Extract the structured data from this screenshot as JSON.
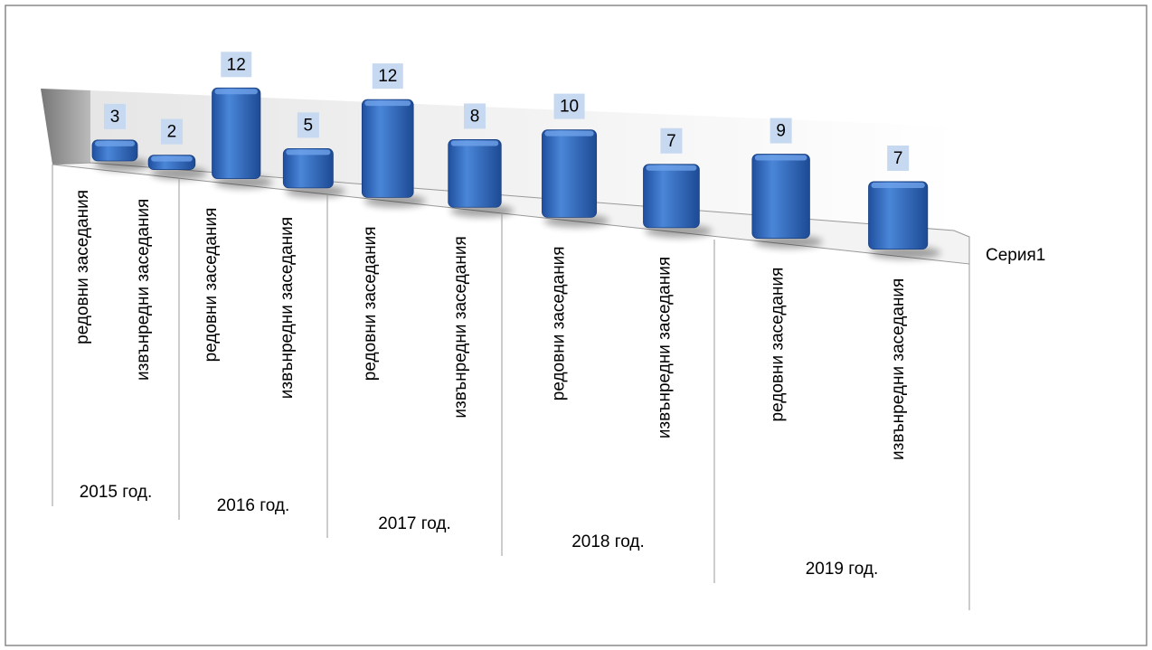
{
  "chart_data": {
    "type": "bar",
    "categories": [
      "редовни заседания",
      "извънредни заседания",
      "редовни заседания",
      "извънредни заседания",
      "редовни заседания",
      "извънредни заседания",
      "редовни заседания",
      "извънредни заседания",
      "редовни заседания",
      "извънредни заседания"
    ],
    "groups": [
      "2015 год.",
      "2016 год.",
      "2017 год.",
      "2018 год.",
      "2019 год."
    ],
    "series": [
      {
        "name": "Серия1",
        "color": "#3a6fc4",
        "values": [
          3,
          2,
          12,
          5,
          12,
          8,
          10,
          7,
          9,
          7
        ]
      }
    ],
    "data_labels": true
  }
}
